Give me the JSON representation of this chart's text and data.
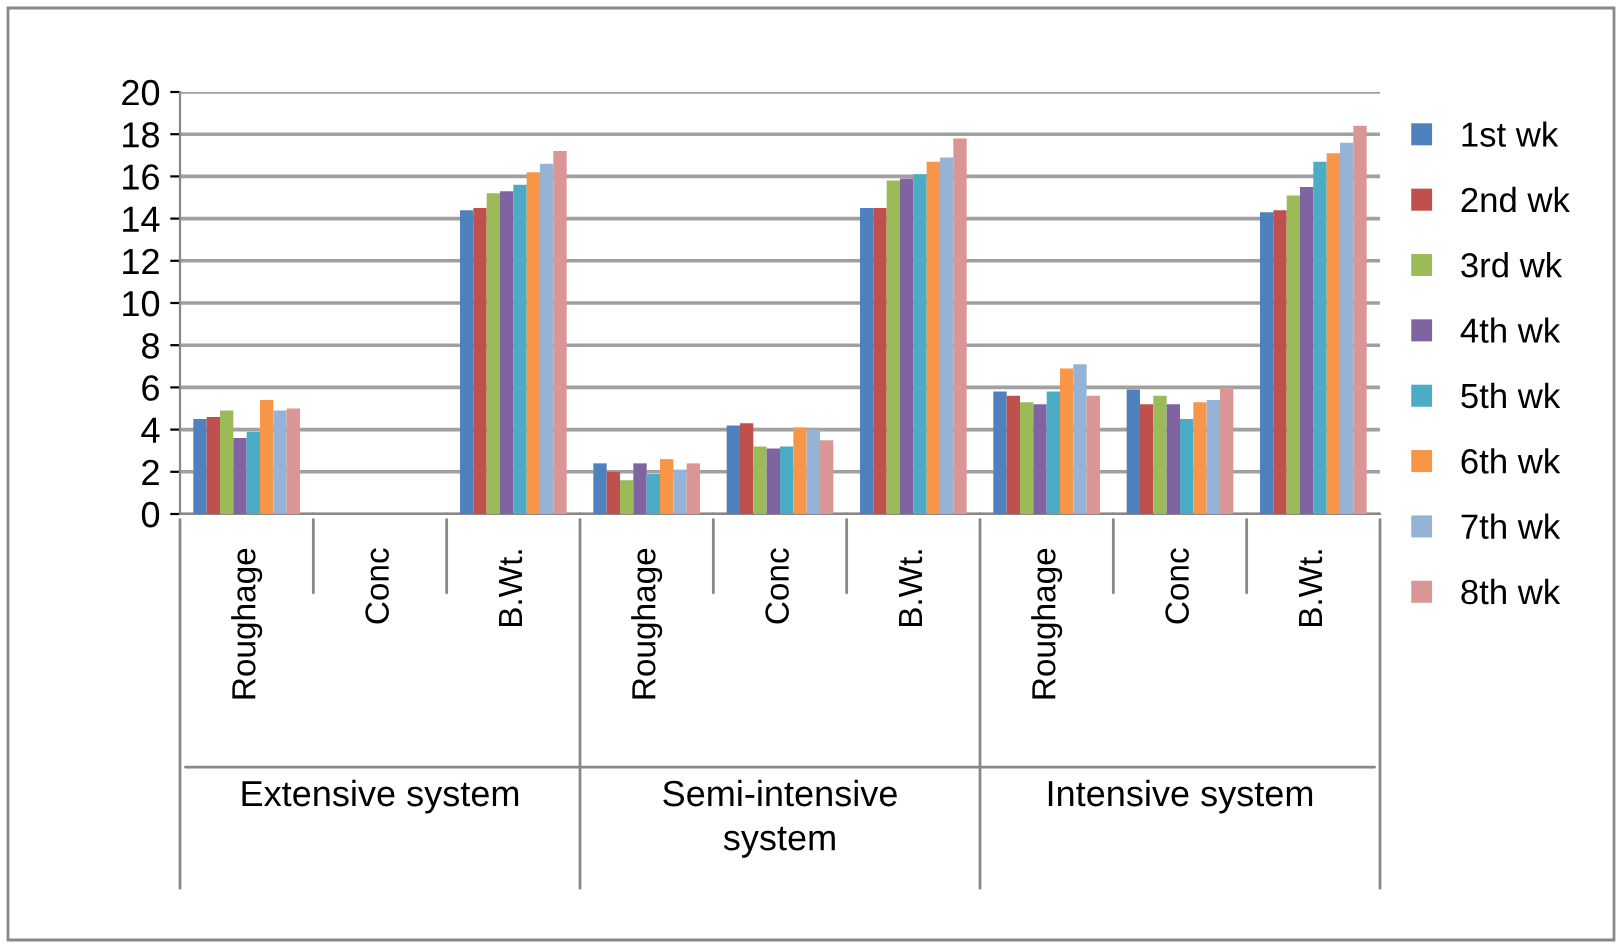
{
  "chart_data": {
    "type": "bar",
    "categories": [
      "Roughage",
      "Conc",
      "B.Wt.",
      "Roughage",
      "Conc",
      "B.Wt.",
      "Roughage",
      "Conc",
      "B.Wt."
    ],
    "annotations": [
      "Extensive system",
      "Semi-intensive system",
      "Intensive system"
    ],
    "series": [
      {
        "name": "1st wk",
        "color": "#4f81bd",
        "values": [
          4.5,
          0,
          14.4,
          2.4,
          4.2,
          14.5,
          5.8,
          5.9,
          14.3
        ]
      },
      {
        "name": "2nd wk",
        "color": "#c0504d",
        "values": [
          4.6,
          0,
          14.5,
          2.0,
          4.3,
          14.5,
          5.6,
          5.2,
          14.4
        ]
      },
      {
        "name": "3rd wk",
        "color": "#9bbb59",
        "values": [
          4.9,
          0,
          15.2,
          1.6,
          3.2,
          15.8,
          5.3,
          5.6,
          15.1
        ]
      },
      {
        "name": "4th wk",
        "color": "#8064a2",
        "values": [
          3.6,
          0,
          15.3,
          2.4,
          3.1,
          15.9,
          5.2,
          5.2,
          15.5
        ]
      },
      {
        "name": "5th wk",
        "color": "#4bacc6",
        "values": [
          3.9,
          0,
          15.6,
          1.9,
          3.2,
          16.1,
          5.8,
          4.5,
          16.7
        ]
      },
      {
        "name": "6th wk",
        "color": "#f79646",
        "values": [
          5.4,
          0,
          16.2,
          2.6,
          4.1,
          16.7,
          6.9,
          5.3,
          17.1
        ]
      },
      {
        "name": "7th wk",
        "color": "#95b3d7",
        "values": [
          4.9,
          0,
          16.6,
          2.1,
          4.0,
          16.9,
          7.1,
          5.4,
          17.6
        ]
      },
      {
        "name": "8th wk",
        "color": "#d99694",
        "values": [
          5.0,
          0,
          17.2,
          2.4,
          3.5,
          17.8,
          5.6,
          6.0,
          18.4
        ]
      }
    ],
    "ylim": [
      0,
      20
    ],
    "yticks": [
      0,
      2,
      4,
      6,
      8,
      10,
      12,
      14,
      16,
      18,
      20
    ],
    "grid": "y",
    "legend": "right"
  }
}
